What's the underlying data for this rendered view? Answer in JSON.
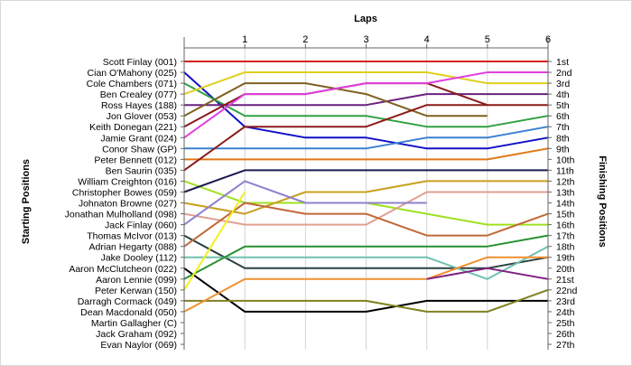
{
  "chart_data": {
    "type": "line",
    "chart_kind": "position bump chart",
    "title": "",
    "xlabel": "Laps",
    "ylabel": "Starting Positions",
    "y2label": "Finishing Positions",
    "x": [
      0,
      1,
      2,
      3,
      4,
      5,
      6
    ],
    "x_tick_labels": [
      "",
      "1",
      "2",
      "3",
      "4",
      "5",
      "6"
    ],
    "y_axis": "position (1 = top, inverted)",
    "ylim": [
      1,
      27
    ],
    "starting_labels": [
      "Scott Finlay (001)",
      "Cian O'Mahony (025)",
      "Cole Chambers (071)",
      "Ben Crealey (077)",
      "Ross Hayes (188)",
      "Jon Glover (053)",
      "Keith Donegan (221)",
      "Jamie Grant (024)",
      "Conor Shaw (GP)",
      "Peter Bennett (012)",
      "Ben Saurin (035)",
      "William Creighton (016)",
      "Christopher Bowes (059)",
      "Johnaton Browne (027)",
      "Jonathan Mulholland (098)",
      "Jack Finlay (060)",
      "Thomas McIvor (013)",
      "Adrian Hegarty (088)",
      "Jake Dooley (112)",
      "Aaron McClutcheon (022)",
      "Aaron Lennie (099)",
      "Peter Kerwan (150)",
      "Darragh Cormack (049)",
      "Dean Macdonald (050)",
      "Martin Gallagher (C)",
      "Jack Graham (092)",
      "Evan Naylor (069)"
    ],
    "finishing_labels": [
      "1st",
      "2nd",
      "3rd",
      "4th",
      "5th",
      "6th",
      "7th",
      "8th",
      "9th",
      "10th",
      "11th",
      "12th",
      "13th",
      "14th",
      "15th",
      "16th",
      "17th",
      "18th",
      "19th",
      "20th",
      "21st",
      "22nd",
      "23rd",
      "24th",
      "25th",
      "26th",
      "27th"
    ],
    "series": [
      {
        "color": "#d62020",
        "positions": [
          1,
          1,
          1,
          1,
          1,
          1,
          1
        ]
      },
      {
        "color": "#1010c8",
        "positions": [
          2,
          7,
          8,
          8,
          9,
          9,
          8
        ]
      },
      {
        "color": "#30a040",
        "positions": [
          3,
          6,
          6,
          6,
          7,
          7,
          6
        ]
      },
      {
        "color": "#e0d020",
        "positions": [
          4,
          2,
          2,
          2,
          2,
          3,
          3
        ]
      },
      {
        "color": "#6a2080",
        "positions": [
          5,
          5,
          5,
          5,
          4,
          4,
          4
        ]
      },
      {
        "color": "#806020",
        "positions": [
          6,
          3,
          3,
          4,
          6,
          6,
          null
        ]
      },
      {
        "color": "#8b1a1a",
        "positions": [
          7,
          4,
          4,
          3,
          3,
          5,
          5
        ]
      },
      {
        "color": "#e040e0",
        "positions": [
          8,
          4,
          4,
          3,
          3,
          2,
          2
        ]
      },
      {
        "color": "#3a80d0",
        "positions": [
          9,
          9,
          9,
          9,
          8,
          8,
          7
        ]
      },
      {
        "color": "#e07818",
        "positions": [
          10,
          10,
          10,
          10,
          10,
          10,
          9
        ]
      },
      {
        "color": "#8b1a1a",
        "positions": [
          11,
          7,
          7,
          7,
          5,
          5,
          null
        ]
      },
      {
        "color": "#a0e020",
        "positions": [
          12,
          14,
          14,
          14,
          15,
          16,
          16
        ]
      },
      {
        "color": "#1a1a50",
        "positions": [
          13,
          11,
          11,
          11,
          11,
          11,
          11
        ]
      },
      {
        "color": "#c8a020",
        "positions": [
          14,
          15,
          13,
          13,
          12,
          12,
          12
        ]
      },
      {
        "color": "#e0a090",
        "positions": [
          15,
          16,
          16,
          16,
          13,
          13,
          13
        ]
      },
      {
        "color": "#9080d0",
        "positions": [
          16,
          12,
          14,
          14,
          14,
          null,
          null
        ]
      },
      {
        "color": "#2a4040",
        "positions": [
          17,
          20,
          20,
          20,
          20,
          20,
          19
        ]
      },
      {
        "color": "#c06838",
        "positions": [
          18,
          14,
          15,
          15,
          17,
          17,
          15
        ]
      },
      {
        "color": "#70c0b0",
        "positions": [
          19,
          19,
          19,
          19,
          19,
          21,
          18
        ]
      },
      {
        "color": "#000000",
        "positions": [
          20,
          24,
          24,
          24,
          23,
          23,
          23
        ]
      },
      {
        "color": "#2a9030",
        "positions": [
          21,
          18,
          18,
          18,
          18,
          18,
          17
        ]
      },
      {
        "color": "#f0f020",
        "positions": [
          22,
          13,
          null,
          null,
          null,
          null,
          null
        ]
      },
      {
        "color": "#808020",
        "positions": [
          23,
          23,
          23,
          23,
          24,
          24,
          22
        ]
      },
      {
        "color": "#f09030",
        "positions": [
          24,
          21,
          21,
          21,
          21,
          19,
          19
        ]
      },
      {
        "color": "#802080",
        "positions": [
          null,
          null,
          null,
          null,
          21,
          20,
          21
        ]
      }
    ]
  }
}
